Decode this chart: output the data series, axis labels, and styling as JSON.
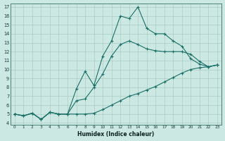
{
  "xlabel": "Humidex (Indice chaleur)",
  "bg_color": "#cce8e2",
  "line_color": "#1a7068",
  "grid_color": "#aaccc5",
  "xlim_min": -0.5,
  "xlim_max": 23.5,
  "ylim_min": 3.8,
  "ylim_max": 17.4,
  "xticks": [
    0,
    1,
    2,
    3,
    4,
    5,
    6,
    7,
    8,
    9,
    10,
    11,
    12,
    13,
    14,
    15,
    16,
    17,
    18,
    19,
    20,
    21,
    22,
    23
  ],
  "yticks": [
    4,
    5,
    6,
    7,
    8,
    9,
    10,
    11,
    12,
    13,
    14,
    15,
    16,
    17
  ],
  "line1_x": [
    0,
    1,
    2,
    3,
    4,
    5,
    6,
    7,
    8,
    9,
    10,
    11,
    12,
    13,
    14,
    15,
    16,
    17,
    18,
    19,
    20,
    21,
    22,
    23
  ],
  "line1_y": [
    5.0,
    4.8,
    5.1,
    4.4,
    5.2,
    5.0,
    5.0,
    5.0,
    5.0,
    5.1,
    5.5,
    6.0,
    6.5,
    7.0,
    7.3,
    7.7,
    8.1,
    8.6,
    9.1,
    9.6,
    10.0,
    10.2,
    10.3,
    10.5
  ],
  "line2_x": [
    0,
    1,
    2,
    3,
    4,
    5,
    6,
    7,
    8,
    9,
    10,
    11,
    12,
    13,
    14,
    15,
    16,
    17,
    18,
    19,
    20,
    21,
    22,
    23
  ],
  "line2_y": [
    5.0,
    4.8,
    5.1,
    4.4,
    5.2,
    5.0,
    5.0,
    7.8,
    9.8,
    8.2,
    11.5,
    13.2,
    16.0,
    15.7,
    17.0,
    14.6,
    14.0,
    14.0,
    13.2,
    12.6,
    11.2,
    10.6,
    10.3,
    10.5
  ],
  "line3_x": [
    0,
    1,
    2,
    3,
    4,
    5,
    6,
    7,
    8,
    9,
    10,
    11,
    12,
    13,
    14,
    15,
    16,
    17,
    18,
    19,
    20,
    21,
    22,
    23
  ],
  "line3_y": [
    5.0,
    4.8,
    5.1,
    4.4,
    5.2,
    5.0,
    5.0,
    6.5,
    6.7,
    8.0,
    9.5,
    11.5,
    12.8,
    13.2,
    12.8,
    12.3,
    12.1,
    12.0,
    12.0,
    12.0,
    11.7,
    10.9,
    10.3,
    10.5
  ]
}
